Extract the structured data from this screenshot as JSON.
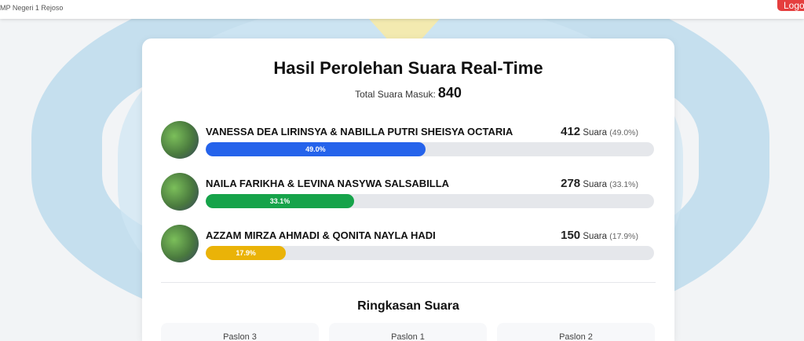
{
  "header": {
    "school": "MP Negeri 1 Rejoso",
    "logout_label": "Logo"
  },
  "results": {
    "title": "Hasil Perolehan Suara Real-Time",
    "total_label": "Total Suara Masuk:",
    "total_value": "840",
    "candidates": [
      {
        "name": "VANESSA DEA LIRINSYA & NABILLA PUTRI SHEISYA OCTARIA",
        "votes": "412",
        "unit": "Suara",
        "percent_text": "(49.0%)",
        "bar_label": "49.0%",
        "percent": 49.0,
        "color": "#2563eb"
      },
      {
        "name": "NAILA FARIKHA & LEVINA NASYWA SALSABILLA",
        "votes": "278",
        "unit": "Suara",
        "percent_text": "(33.1%)",
        "bar_label": "33.1%",
        "percent": 33.1,
        "color": "#16a34a"
      },
      {
        "name": "AZZAM MIRZA AHMADI & QONITA NAYLA HADI",
        "votes": "150",
        "unit": "Suara",
        "percent_text": "(17.9%)",
        "bar_label": "17.9%",
        "percent": 17.9,
        "color": "#eab308"
      }
    ]
  },
  "summary": {
    "title": "Ringkasan Suara",
    "cards": [
      {
        "label": "Paslon 3"
      },
      {
        "label": "Paslon 1"
      },
      {
        "label": "Paslon 2"
      }
    ]
  }
}
